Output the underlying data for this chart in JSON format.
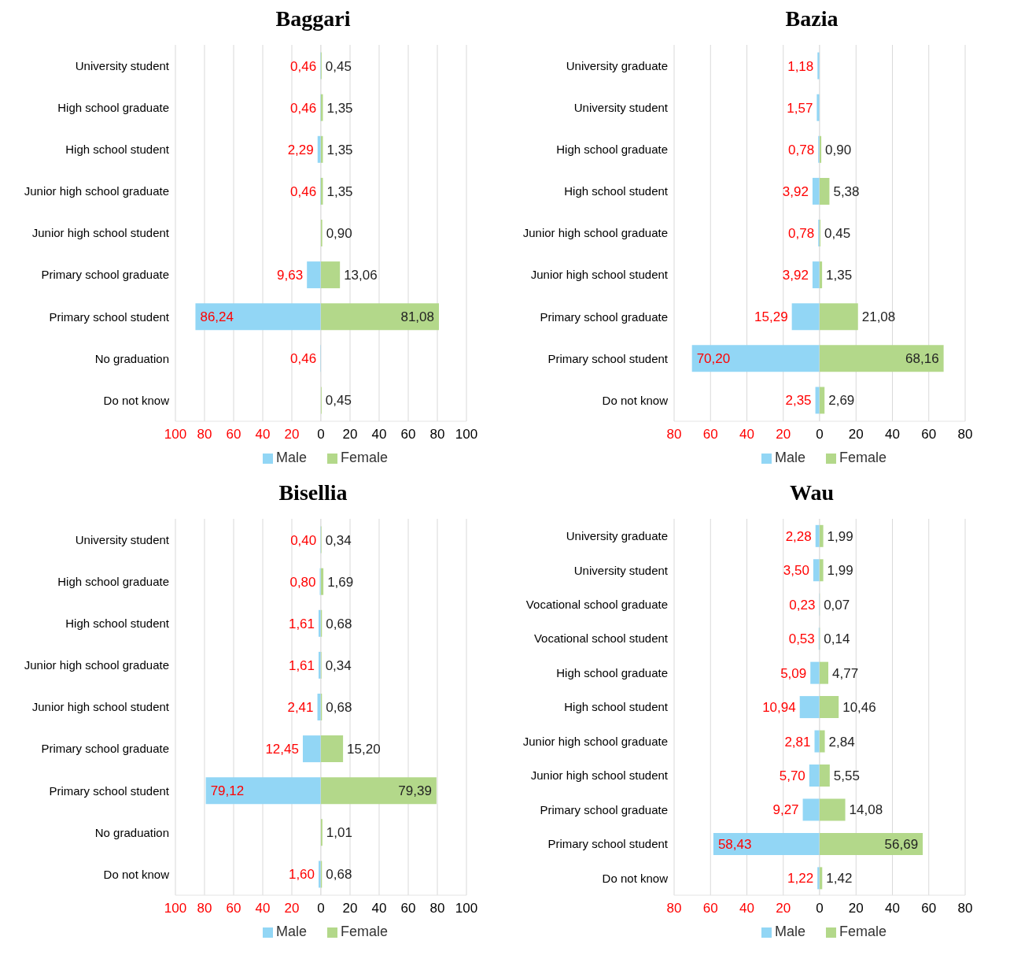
{
  "chart_data": [
    {
      "type": "bar",
      "title": "Baggari",
      "orientation": "horizontal",
      "grid": "x",
      "legend": "bottom right",
      "categories": [
        "University student",
        "High school graduate",
        "High school student",
        "Junior high school graduate",
        "Junior high school student",
        "Primary school graduate",
        "Primary school student",
        "No graduation",
        "Do not know"
      ],
      "xlim": [
        100,
        0
      ],
      "xticks": [
        100,
        80,
        60,
        40,
        20
      ],
      "series": [
        {
          "name": "Male",
          "color": "#92d6f5",
          "values": [
            0.46,
            0.46,
            2.29,
            0.46,
            null,
            9.63,
            86.24,
            0.46,
            null
          ],
          "value_labels": [
            "0,46",
            "0,46",
            "2,29",
            "0,46",
            null,
            "9,63",
            "86,24",
            "0,46",
            null
          ]
        }
      ]
    },
    {
      "type": "bar",
      "orientation": "horizontal",
      "grid": "x",
      "legend": "bottom left",
      "tick_labels": "x",
      "categories": [
        null,
        null,
        null,
        null,
        null,
        null,
        null,
        null,
        null
      ],
      "xlim": [
        0,
        100
      ],
      "xticks": [
        0,
        20,
        40,
        60,
        80,
        100
      ],
      "series": [
        {
          "name": "Female",
          "color": "#b3d88a",
          "values": [
            0.45,
            1.35,
            1.35,
            1.35,
            0.9,
            13.06,
            81.08,
            null,
            0.45
          ],
          "value_labels": [
            "0,45",
            "1,35",
            "1,35",
            "1,35",
            "0,90",
            "13,06",
            "81,08",
            null,
            "0,45"
          ]
        }
      ]
    },
    {
      "type": "bar",
      "title": "Bazia",
      "orientation": "horizontal",
      "grid": "x",
      "legend": "bottom right",
      "categories": [
        "University graduate",
        "University student",
        "High school graduate",
        "High school student",
        "Junior high school graduate",
        "Junior high school student",
        "Primary school graduate",
        "Primary school student",
        "Do not know"
      ],
      "xlim": [
        80,
        0
      ],
      "xticks": [
        80,
        60,
        40,
        20
      ],
      "series": [
        {
          "name": "Male",
          "color": "#92d6f5",
          "values": [
            1.18,
            1.57,
            0.78,
            3.92,
            0.78,
            3.92,
            15.29,
            70.2,
            2.35
          ],
          "value_labels": [
            "1,18",
            "1,57",
            "0,78",
            "3,92",
            "0,78",
            "3,92",
            "15,29",
            "70,20",
            "2,35"
          ]
        }
      ]
    },
    {
      "type": "bar",
      "orientation": "horizontal",
      "grid": "x",
      "legend": "bottom left",
      "tick_labels": "x",
      "categories": [
        null,
        null,
        null,
        null,
        null,
        null,
        null,
        null,
        null
      ],
      "xlim": [
        0,
        80
      ],
      "xticks": [
        0,
        20,
        40,
        60,
        80
      ],
      "series": [
        {
          "name": "Female",
          "color": "#b3d88a",
          "values": [
            null,
            null,
            0.9,
            5.38,
            0.45,
            1.35,
            21.08,
            68.16,
            2.69
          ],
          "value_labels": [
            null,
            null,
            "0,90",
            "5,38",
            "0,45",
            "1,35",
            "21,08",
            "68,16",
            "2,69"
          ]
        }
      ]
    },
    {
      "type": "bar",
      "title": "Bisellia",
      "orientation": "horizontal",
      "grid": "x",
      "legend": "bottom right",
      "categories": [
        "University student",
        "High school graduate",
        "High school student",
        "Junior high school graduate",
        "Junior high school student",
        "Primary school graduate",
        "Primary school student",
        "No graduation",
        "Do not know"
      ],
      "xlim": [
        100,
        0
      ],
      "xticks": [
        100,
        80,
        60,
        40,
        20
      ],
      "series": [
        {
          "name": "Male",
          "color": "#92d6f5",
          "values": [
            0.4,
            0.8,
            1.61,
            1.61,
            2.41,
            12.45,
            79.12,
            null,
            1.6
          ],
          "value_labels": [
            "0,40",
            "0,80",
            "1,61",
            "1,61",
            "2,41",
            "12,45",
            "79,12",
            null,
            "1,60"
          ]
        }
      ]
    },
    {
      "type": "bar",
      "orientation": "horizontal",
      "grid": "x",
      "legend": "bottom left",
      "tick_labels": "x",
      "categories": [
        null,
        null,
        null,
        null,
        null,
        null,
        null,
        null,
        null
      ],
      "xlim": [
        0,
        100
      ],
      "xticks": [
        0,
        20,
        40,
        60,
        80,
        100
      ],
      "series": [
        {
          "name": "Female",
          "color": "#b3d88a",
          "values": [
            0.34,
            1.69,
            0.68,
            0.34,
            0.68,
            15.2,
            79.39,
            1.01,
            0.68
          ],
          "value_labels": [
            "0,34",
            "1,69",
            "0,68",
            "0,34",
            "0,68",
            "15,20",
            "79,39",
            "1,01",
            "0,68"
          ]
        }
      ]
    },
    {
      "type": "bar",
      "title": "Wau",
      "orientation": "horizontal",
      "grid": "x",
      "legend": "bottom right",
      "categories": [
        "University graduate",
        "University student",
        "Vocational school graduate",
        "Vocational school student",
        "High school graduate",
        "High school student",
        "Junior high school graduate",
        "Junior high school student",
        "Primary school graduate",
        "Primary school student",
        "Do not know"
      ],
      "xlim": [
        80,
        0
      ],
      "xticks": [
        80,
        60,
        40,
        20
      ],
      "series": [
        {
          "name": "Male",
          "color": "#92d6f5",
          "values": [
            2.28,
            3.5,
            0.23,
            0.53,
            5.09,
            10.94,
            2.81,
            5.7,
            9.27,
            58.43,
            1.22
          ],
          "value_labels": [
            "2,28",
            "3,50",
            "0,23",
            "0,53",
            "5,09",
            "10,94",
            "2,81",
            "5,70",
            "9,27",
            "58,43",
            "1,22"
          ]
        }
      ]
    },
    {
      "type": "bar",
      "orientation": "horizontal",
      "grid": "x",
      "legend": "bottom left",
      "tick_labels": "x",
      "categories": [
        null,
        null,
        null,
        null,
        null,
        null,
        null,
        null,
        null,
        null,
        null
      ],
      "xlim": [
        0,
        80
      ],
      "xticks": [
        0,
        20,
        40,
        60,
        80
      ],
      "series": [
        {
          "name": "Female",
          "color": "#b3d88a",
          "values": [
            1.99,
            1.99,
            0.07,
            0.14,
            4.77,
            10.46,
            2.84,
            5.55,
            14.08,
            56.69,
            1.42
          ],
          "value_labels": [
            "1,99",
            "1,99",
            "0,07",
            "0,14",
            "4,77",
            "10,46",
            "2,84",
            "5,55",
            "14,08",
            "56,69",
            "1,42"
          ]
        }
      ]
    }
  ]
}
